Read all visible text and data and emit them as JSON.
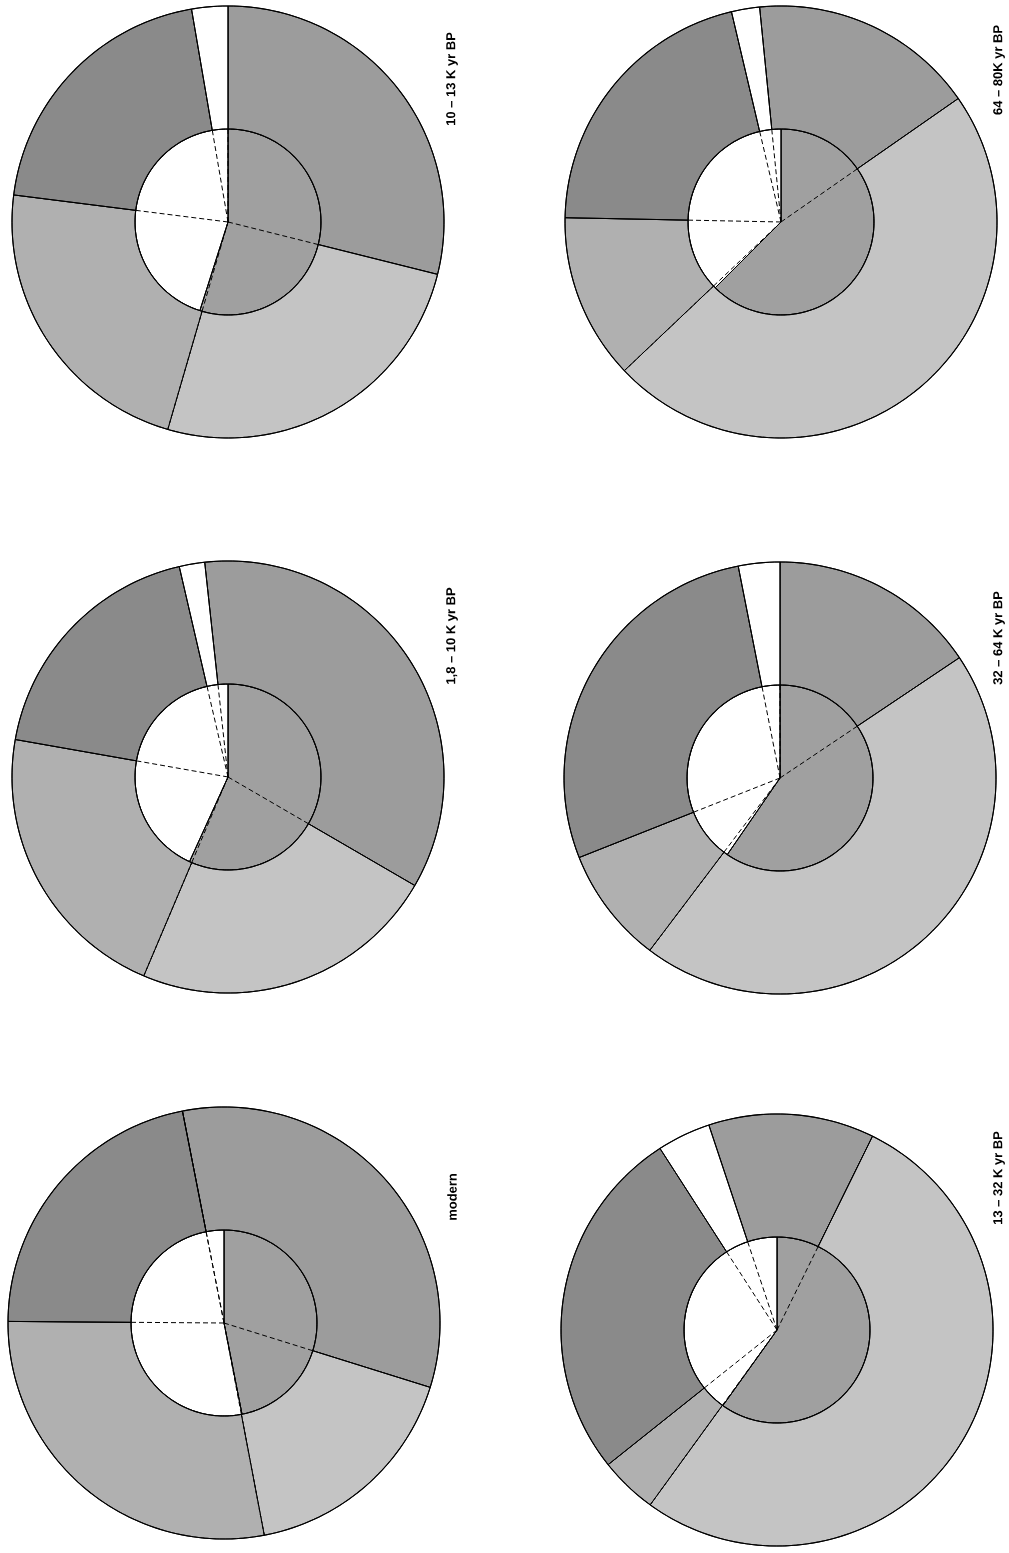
{
  "chart_data": [
    {
      "type": "donut",
      "title": "10 – 13 K yr BP",
      "categories": [
        null,
        null,
        null,
        null,
        null
      ],
      "values": [
        28.9,
        25.6,
        22.5,
        20.3,
        2.7
      ],
      "colors": [
        "#9c9c9c",
        "#c4c4c4",
        "#b0b0b0",
        "#8a8a8a",
        "#ffffff"
      ]
    },
    {
      "type": "pie",
      "categories": [
        null,
        null
      ],
      "values": [
        54.9,
        45.1
      ],
      "colors": [
        "#a0a0a0",
        "#ffffff"
      ]
    },
    {
      "type": "donut",
      "title": "64 – 80K yr BP",
      "categories": [
        null,
        null,
        null,
        null,
        null
      ],
      "values": [
        16.9,
        47.6,
        12.4,
        21.0,
        2.1
      ],
      "colors": [
        "#9c9c9c",
        "#c4c4c4",
        "#b0b0b0",
        "#8a8a8a",
        "#ffffff"
      ]
    },
    {
      "type": "pie",
      "categories": [
        null,
        null
      ],
      "values": [
        62.5,
        37.5
      ],
      "colors": [
        "#a0a0a0",
        "#ffffff"
      ]
    },
    {
      "type": "donut",
      "title": "1,8 – 10 K yr BP",
      "categories": [
        null,
        null,
        null,
        null,
        null
      ],
      "values": [
        35.1,
        23.0,
        21.4,
        18.6,
        1.9
      ],
      "colors": [
        "#9c9c9c",
        "#c4c4c4",
        "#b0b0b0",
        "#8a8a8a",
        "#ffffff"
      ]
    },
    {
      "type": "pie",
      "categories": [
        null,
        null
      ],
      "values": [
        56.8,
        43.2
      ],
      "colors": [
        "#a0a0a0",
        "#ffffff"
      ]
    },
    {
      "type": "donut",
      "title": "32 – 64 K yr BP",
      "categories": [
        null,
        null,
        null,
        null,
        null
      ],
      "values": [
        15.6,
        44.7,
        8.7,
        27.9,
        3.1
      ],
      "colors": [
        "#9c9c9c",
        "#c4c4c4",
        "#b0b0b0",
        "#8a8a8a",
        "#ffffff"
      ]
    },
    {
      "type": "pie",
      "categories": [
        null,
        null
      ],
      "values": [
        59.6,
        40.4
      ],
      "colors": [
        "#a0a0a0",
        "#ffffff"
      ]
    },
    {
      "type": "donut",
      "title": "modern",
      "categories": [
        null,
        null,
        null,
        null,
        null
      ],
      "values": [
        32.9,
        17.2,
        28.1,
        21.8,
        0
      ],
      "colors": [
        "#9c9c9c",
        "#c4c4c4",
        "#b0b0b0",
        "#8a8a8a",
        "#ffffff"
      ]
    },
    {
      "type": "pie",
      "categories": [
        null,
        null
      ],
      "values": [
        46.9,
        53.1
      ],
      "colors": [
        "#a0a0a0",
        "#ffffff"
      ]
    },
    {
      "type": "donut",
      "title": "13 – 32 K yr BP",
      "categories": [
        null,
        null,
        null,
        null,
        null
      ],
      "values": [
        12.4,
        52.7,
        4.3,
        26.6,
        4.0
      ],
      "colors": [
        "#9c9c9c",
        "#c4c4c4",
        "#b0b0b0",
        "#8a8a8a",
        "#ffffff"
      ]
    },
    {
      "type": "pie",
      "categories": [
        null,
        null
      ],
      "values": [
        59.9,
        40.1
      ],
      "colors": [
        "#a0a0a0",
        "#ffffff"
      ]
    }
  ]
}
